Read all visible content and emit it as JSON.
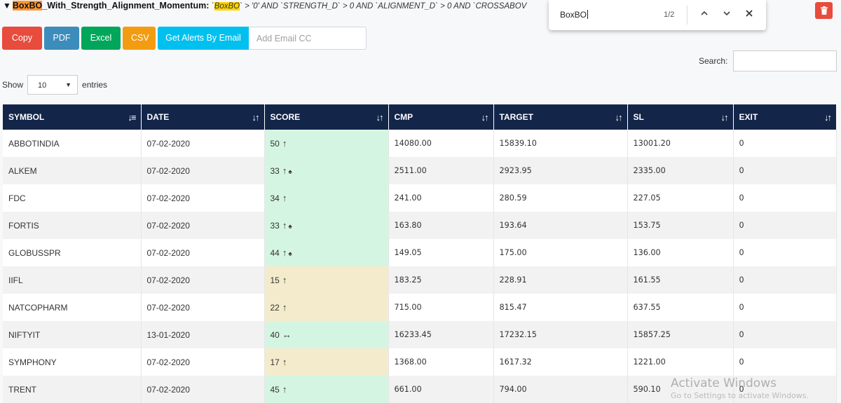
{
  "title": {
    "highlight_match": "BoxBO",
    "rest_of_name": "_With_Strength_Alignment_Momentum:",
    "query_prefix": "`",
    "query_match": "BoxBO",
    "query_rest": "` > '0' AND `STRENGTH_D` > 0 AND `ALIGNMENT_D` > 0 AND `CROSSABOV"
  },
  "find_bar": {
    "query": "BoxBO",
    "count": "1/2"
  },
  "toolbar": {
    "copy": "Copy",
    "pdf": "PDF",
    "excel": "Excel",
    "csv": "CSV",
    "alerts": "Get Alerts By Email",
    "email_placeholder": "Add Email CC"
  },
  "search_label": "Search:",
  "length": {
    "show": "Show",
    "value": "10",
    "entries": "entries"
  },
  "columns": [
    "SYMBOL",
    "DATE",
    "SCORE",
    "CMP",
    "TARGET",
    "SL",
    "EXIT"
  ],
  "rows": [
    {
      "symbol": "ABBOTINDIA",
      "date": "07-02-2020",
      "score": "50",
      "arrow": "↑",
      "spade": "",
      "cmp": "14080.00",
      "target": "15839.10",
      "sl": "13001.20",
      "exit": "0",
      "tone": "green"
    },
    {
      "symbol": "ALKEM",
      "date": "07-02-2020",
      "score": "33",
      "arrow": "↑",
      "spade": "♠",
      "cmp": "2511.00",
      "target": "2923.95",
      "sl": "2335.00",
      "exit": "0",
      "tone": "green"
    },
    {
      "symbol": "FDC",
      "date": "07-02-2020",
      "score": "34",
      "arrow": "↑",
      "spade": "",
      "cmp": "241.00",
      "target": "280.59",
      "sl": "227.05",
      "exit": "0",
      "tone": "green"
    },
    {
      "symbol": "FORTIS",
      "date": "07-02-2020",
      "score": "33",
      "arrow": "↑",
      "spade": "♠",
      "cmp": "163.80",
      "target": "193.64",
      "sl": "153.75",
      "exit": "0",
      "tone": "green"
    },
    {
      "symbol": "GLOBUSSPR",
      "date": "07-02-2020",
      "score": "44",
      "arrow": "↑",
      "spade": "♠",
      "cmp": "149.05",
      "target": "175.00",
      "sl": "136.00",
      "exit": "0",
      "tone": "green"
    },
    {
      "symbol": "IIFL",
      "date": "07-02-2020",
      "score": "15",
      "arrow": "↑",
      "spade": "",
      "cmp": "183.25",
      "target": "228.91",
      "sl": "161.55",
      "exit": "0",
      "tone": "beige"
    },
    {
      "symbol": "NATCOPHARM",
      "date": "07-02-2020",
      "score": "22",
      "arrow": "↑",
      "spade": "",
      "cmp": "715.00",
      "target": "815.47",
      "sl": "637.55",
      "exit": "0",
      "tone": "beige"
    },
    {
      "symbol": "NIFTYIT",
      "date": "13-01-2020",
      "score": "40",
      "arrow": "↔",
      "spade": "",
      "cmp": "16233.45",
      "target": "17232.15",
      "sl": "15857.25",
      "exit": "0",
      "tone": "green"
    },
    {
      "symbol": "SYMPHONY",
      "date": "07-02-2020",
      "score": "17",
      "arrow": "↑",
      "spade": "",
      "cmp": "1368.00",
      "target": "1617.32",
      "sl": "1221.00",
      "exit": "0",
      "tone": "beige"
    },
    {
      "symbol": "TRENT",
      "date": "07-02-2020",
      "score": "45",
      "arrow": "↑",
      "spade": "",
      "cmp": "661.00",
      "target": "794.00",
      "sl": "590.10",
      "exit": "0",
      "tone": "green"
    }
  ],
  "watermark": "Activate Windows",
  "watermark_sub": "Go to Settings to activate Windows."
}
